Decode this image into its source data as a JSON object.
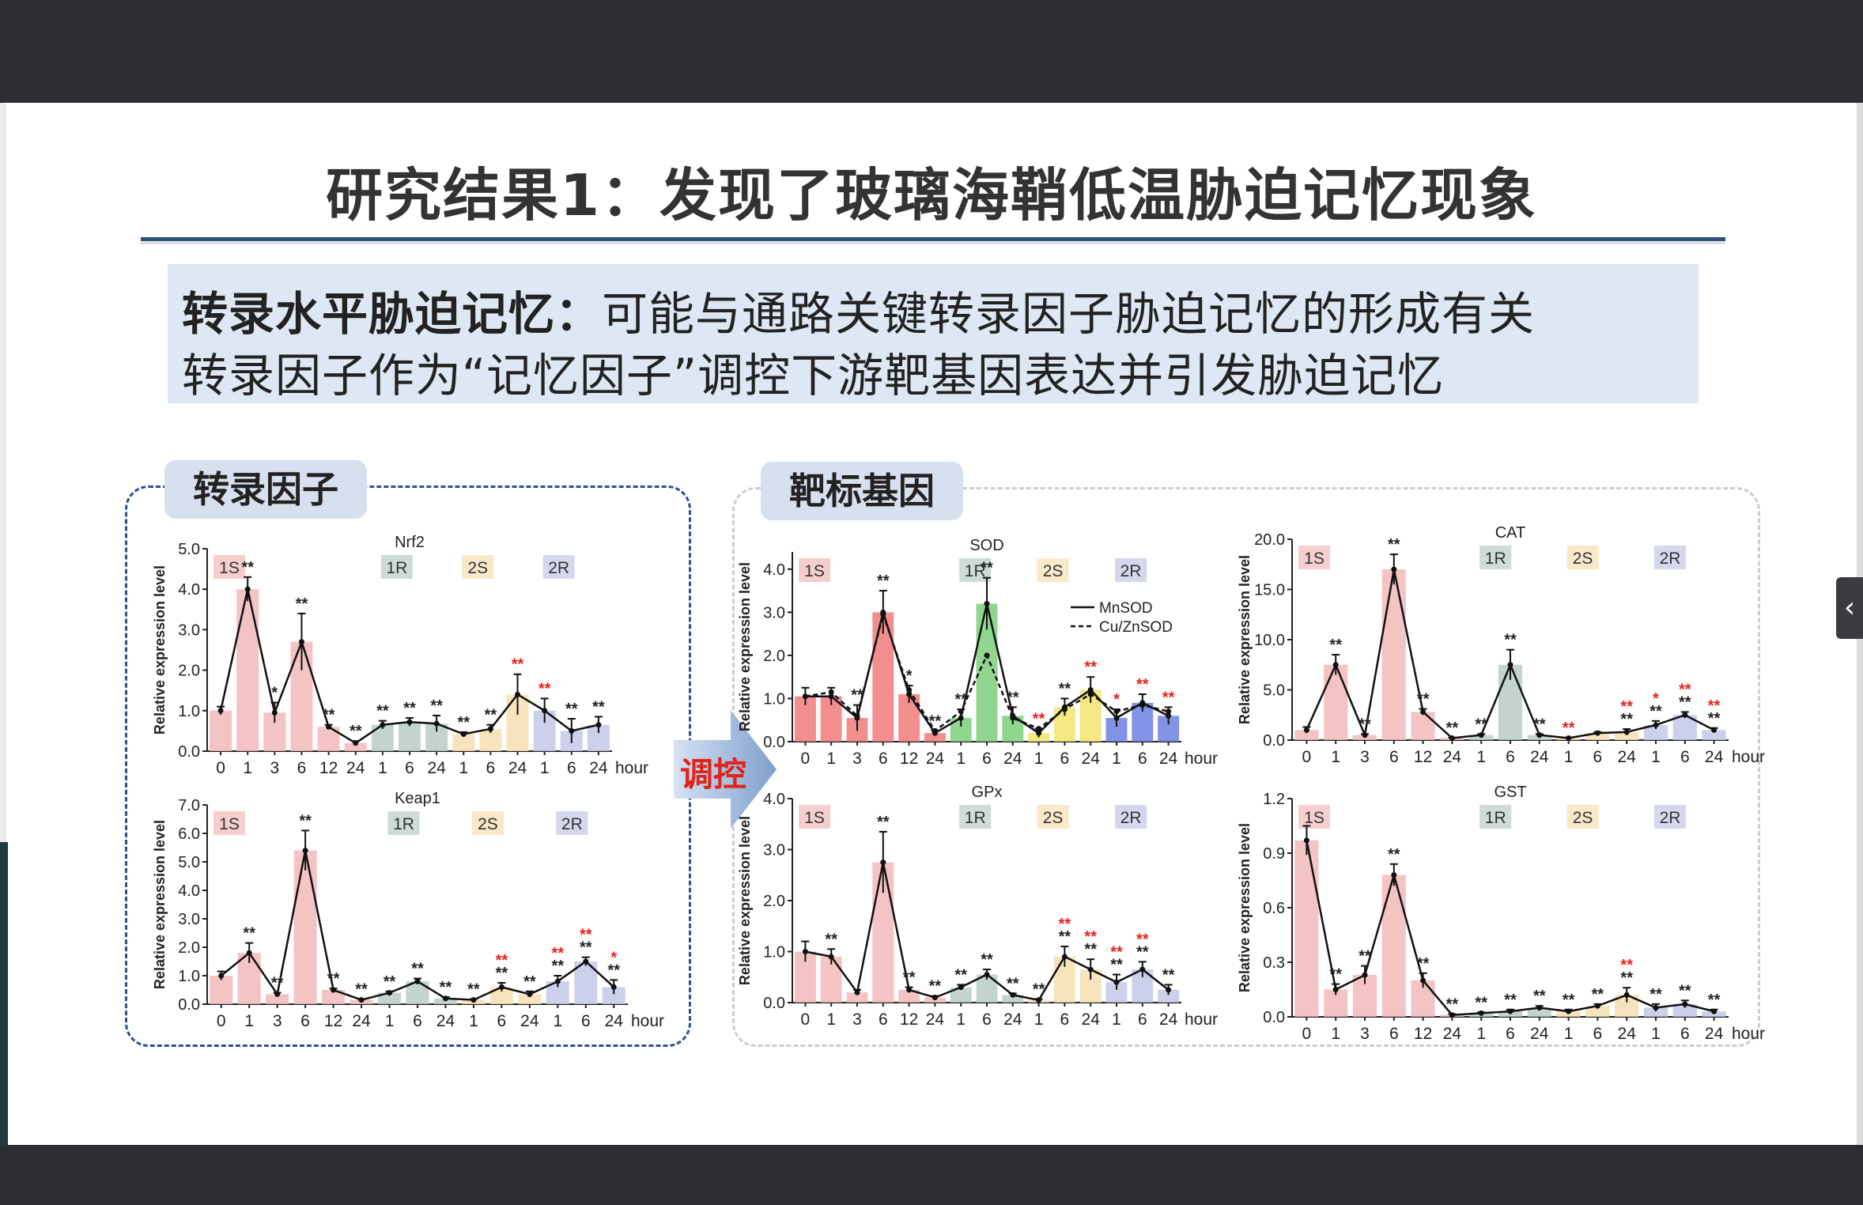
{
  "title": "研究结果1：发现了玻璃海鞘低温胁迫记忆现象",
  "description": {
    "line1_bold": "转录水平胁迫记忆：",
    "line1_rest": "可能与通路关键转录因子胁迫记忆的形成有关",
    "line2": "转录因子作为“记忆因子”调控下游靶基因表达并引发胁迫记忆"
  },
  "left_panel_label": "转录因子",
  "right_panel_label": "靶标基因",
  "arrow_label": "调控",
  "side_arrow_icon": "‹",
  "colors": {
    "phase_1S": "#f2b9b9",
    "phase_1R": "#b9ccc4",
    "phase_2S": "#f6dfb2",
    "phase_2R": "#c3c8e6",
    "sig_black": "#222222",
    "sig_red": "#e8231b"
  },
  "chart_data": [
    {
      "id": "nrf2",
      "type": "bar",
      "title": "Nrf2",
      "ylabel": "Relative expression level",
      "ylim": [
        0,
        5.0
      ],
      "yticks": [
        "0.0",
        "1.0",
        "2.0",
        "3.0",
        "4.0",
        "5.0"
      ],
      "categories": [
        "0",
        "1",
        "3",
        "6",
        "12",
        "24",
        "1",
        "6",
        "24",
        "1",
        "6",
        "24",
        "1",
        "6",
        "24"
      ],
      "xunit": "hour",
      "phases": [
        "1S",
        "1R",
        "2S",
        "2R"
      ],
      "values": [
        1.0,
        4.0,
        0.95,
        2.7,
        0.6,
        0.2,
        0.65,
        0.72,
        0.68,
        0.42,
        0.55,
        1.4,
        1.0,
        0.5,
        0.65
      ],
      "errors": [
        0.1,
        0.3,
        0.25,
        0.7,
        0.05,
        0.05,
        0.1,
        0.1,
        0.2,
        0.05,
        0.1,
        0.5,
        0.3,
        0.3,
        0.2
      ],
      "sig": [
        [
          "",
          ""
        ],
        [
          "**",
          "b"
        ],
        [
          "*",
          "b"
        ],
        [
          "**",
          "b"
        ],
        [
          "**",
          "b"
        ],
        [
          "**",
          "b"
        ],
        [
          "**",
          "b"
        ],
        [
          "**",
          "b"
        ],
        [
          "**",
          "b"
        ],
        [
          "**",
          "b"
        ],
        [
          "**",
          "b"
        ],
        [
          "**",
          "r"
        ],
        [
          "**",
          "r"
        ],
        [
          "**",
          "b"
        ],
        [
          "**",
          "b"
        ]
      ]
    },
    {
      "id": "keap1",
      "type": "bar",
      "title": "Keap1",
      "ylabel": "Relative expression level",
      "ylim": [
        0,
        7.0
      ],
      "yticks": [
        "0.0",
        "1.0",
        "2.0",
        "3.0",
        "4.0",
        "5.0",
        "6.0",
        "7.0"
      ],
      "categories": [
        "0",
        "1",
        "3",
        "6",
        "12",
        "24",
        "1",
        "6",
        "24",
        "1",
        "6",
        "24",
        "1",
        "6",
        "24"
      ],
      "xunit": "hour",
      "phases": [
        "1S",
        "1R",
        "2S",
        "2R"
      ],
      "values": [
        1.0,
        1.8,
        0.35,
        5.4,
        0.5,
        0.15,
        0.4,
        0.8,
        0.2,
        0.15,
        0.6,
        0.35,
        0.8,
        1.5,
        0.6
      ],
      "errors": [
        0.15,
        0.35,
        0.05,
        0.7,
        0.05,
        0.03,
        0.05,
        0.1,
        0.05,
        0.03,
        0.15,
        0.1,
        0.2,
        0.15,
        0.25
      ],
      "sig": [
        [
          "",
          ""
        ],
        [
          "**",
          "b"
        ],
        [
          "**",
          "b"
        ],
        [
          "**",
          "b"
        ],
        [
          "**",
          "b"
        ],
        [
          "**",
          "b"
        ],
        [
          "**",
          "b"
        ],
        [
          "**",
          "b"
        ],
        [
          "**",
          "b"
        ],
        [
          "**",
          "b"
        ],
        [
          "**",
          "rb"
        ],
        [
          "**",
          "b"
        ],
        [
          "**",
          "rb"
        ],
        [
          "**",
          "rb"
        ],
        [
          "*",
          "rb"
        ]
      ]
    },
    {
      "id": "sod",
      "type": "bar",
      "title": "SOD",
      "ylabel": "Relative expression level",
      "ylim": [
        0,
        4.4
      ],
      "yticks": [
        "0.0",
        "1.0",
        "2.0",
        "3.0",
        "4.0"
      ],
      "categories": [
        "0",
        "1",
        "3",
        "6",
        "12",
        "24",
        "1",
        "6",
        "24",
        "1",
        "6",
        "24",
        "1",
        "6",
        "24"
      ],
      "xunit": "hour",
      "phases": [
        "1S",
        "1R",
        "2S",
        "2R"
      ],
      "legend": [
        "MnSOD",
        "Cu/ZnSOD"
      ],
      "series": [
        {
          "name": "MnSOD",
          "values": [
            1.05,
            1.05,
            0.55,
            3.0,
            1.1,
            0.2,
            0.55,
            3.2,
            0.6,
            0.2,
            0.8,
            1.2,
            0.55,
            0.9,
            0.6
          ]
        },
        {
          "name": "Cu/ZnSOD",
          "values": [
            1.05,
            1.15,
            0.6,
            2.95,
            1.2,
            0.25,
            0.7,
            2.0,
            0.55,
            0.3,
            0.75,
            1.1,
            0.7,
            0.85,
            0.7
          ]
        }
      ],
      "errors": [
        0.2,
        0.2,
        0.3,
        0.5,
        0.2,
        0.05,
        0.2,
        0.6,
        0.2,
        0.1,
        0.2,
        0.3,
        0.2,
        0.2,
        0.2
      ],
      "sig": [
        [
          "",
          ""
        ],
        [
          "",
          ""
        ],
        [
          "**",
          "b"
        ],
        [
          "**",
          "b"
        ],
        [
          "*",
          "b"
        ],
        [
          "**",
          "b"
        ],
        [
          "**",
          "b"
        ],
        [
          "**",
          "b"
        ],
        [
          "**",
          "b"
        ],
        [
          "**",
          "r"
        ],
        [
          "**",
          "b"
        ],
        [
          "**",
          "r"
        ],
        [
          "*",
          "r"
        ],
        [
          "**",
          "r"
        ],
        [
          "**",
          "r"
        ]
      ]
    },
    {
      "id": "cat",
      "type": "bar",
      "title": "CAT",
      "ylabel": "Relative expression level",
      "ylim": [
        0,
        20.0
      ],
      "yticks": [
        "0.0",
        "5.0",
        "10.0",
        "15.0",
        "20.0"
      ],
      "categories": [
        "0",
        "1",
        "3",
        "6",
        "12",
        "24",
        "1",
        "6",
        "24",
        "1",
        "6",
        "24",
        "1",
        "6",
        "24"
      ],
      "xunit": "hour",
      "phases": [
        "1S",
        "1R",
        "2S",
        "2R"
      ],
      "values": [
        1.0,
        7.5,
        0.5,
        17.0,
        2.8,
        0.2,
        0.5,
        7.5,
        0.5,
        0.2,
        0.7,
        0.8,
        1.5,
        2.5,
        1.0
      ],
      "errors": [
        0.3,
        1.0,
        0.1,
        1.5,
        0.3,
        0.05,
        0.1,
        1.5,
        0.1,
        0.05,
        0.1,
        0.3,
        0.4,
        0.3,
        0.2
      ],
      "sig": [
        [
          "",
          ""
        ],
        [
          "**",
          "b"
        ],
        [
          "**",
          "b"
        ],
        [
          "**",
          "b"
        ],
        [
          "**",
          "b"
        ],
        [
          "**",
          "b"
        ],
        [
          "**",
          "b"
        ],
        [
          "**",
          "b"
        ],
        [
          "**",
          "b"
        ],
        [
          "**",
          "r"
        ],
        [
          "",
          ""
        ],
        [
          "**",
          "rb"
        ],
        [
          "*",
          "rb"
        ],
        [
          "**",
          "rb"
        ],
        [
          "**",
          "rb"
        ]
      ]
    },
    {
      "id": "gpx",
      "type": "bar",
      "title": "GPx",
      "ylabel": "Relative expression level",
      "ylim": [
        0,
        4.0
      ],
      "yticks": [
        "0.0",
        "1.0",
        "2.0",
        "3.0",
        "4.0"
      ],
      "categories": [
        "0",
        "1",
        "3",
        "6",
        "12",
        "24",
        "1",
        "6",
        "24",
        "1",
        "6",
        "24",
        "1",
        "6",
        "24"
      ],
      "xunit": "hour",
      "phases": [
        "1S",
        "1R",
        "2S",
        "2R"
      ],
      "values": [
        1.0,
        0.9,
        0.2,
        2.75,
        0.25,
        0.1,
        0.3,
        0.55,
        0.15,
        0.05,
        0.9,
        0.65,
        0.4,
        0.65,
        0.25
      ],
      "errors": [
        0.2,
        0.15,
        0.05,
        0.6,
        0.05,
        0.03,
        0.05,
        0.1,
        0.03,
        0.02,
        0.2,
        0.2,
        0.15,
        0.15,
        0.1
      ],
      "sig": [
        [
          "",
          ""
        ],
        [
          "**",
          "b"
        ],
        [
          "",
          ""
        ],
        [
          "**",
          "b"
        ],
        [
          "**",
          "b"
        ],
        [
          "**",
          "b"
        ],
        [
          "**",
          "b"
        ],
        [
          "**",
          "b"
        ],
        [
          "**",
          "b"
        ],
        [
          "**",
          "b"
        ],
        [
          "**",
          "rb"
        ],
        [
          "**",
          "rb"
        ],
        [
          "**",
          "rb"
        ],
        [
          "**",
          "rb"
        ],
        [
          "**",
          "b"
        ]
      ]
    },
    {
      "id": "gst",
      "type": "bar",
      "title": "GST",
      "ylabel": "Relative expression level",
      "ylim": [
        0,
        1.2
      ],
      "yticks": [
        "0.0",
        "0.3",
        "0.6",
        "0.9",
        "1.2"
      ],
      "categories": [
        "0",
        "1",
        "3",
        "6",
        "12",
        "24",
        "1",
        "6",
        "24",
        "1",
        "6",
        "24",
        "1",
        "6",
        "24"
      ],
      "xunit": "hour",
      "phases": [
        "1S",
        "1R",
        "2S",
        "2R"
      ],
      "values": [
        0.97,
        0.15,
        0.23,
        0.78,
        0.2,
        0.01,
        0.02,
        0.03,
        0.05,
        0.03,
        0.06,
        0.12,
        0.05,
        0.07,
        0.03
      ],
      "errors": [
        0.08,
        0.03,
        0.05,
        0.06,
        0.04,
        0.005,
        0.005,
        0.01,
        0.01,
        0.01,
        0.01,
        0.04,
        0.02,
        0.02,
        0.01
      ],
      "sig": [
        [
          "",
          ""
        ],
        [
          "**",
          "b"
        ],
        [
          "**",
          "b"
        ],
        [
          "**",
          "b"
        ],
        [
          "**",
          "b"
        ],
        [
          "**",
          "b"
        ],
        [
          "**",
          "b"
        ],
        [
          "**",
          "b"
        ],
        [
          "**",
          "b"
        ],
        [
          "**",
          "b"
        ],
        [
          "**",
          "b"
        ],
        [
          "**",
          "rb"
        ],
        [
          "**",
          "b"
        ],
        [
          "**",
          "b"
        ],
        [
          "**",
          "b"
        ]
      ]
    }
  ]
}
